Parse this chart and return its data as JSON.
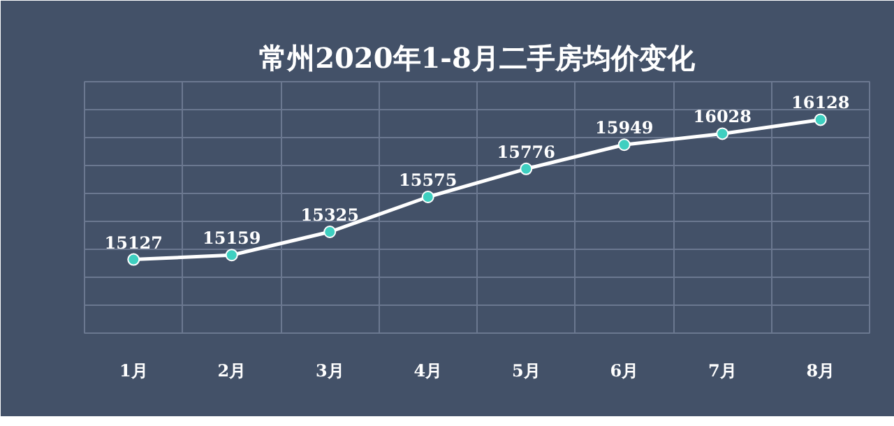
{
  "chart_data": {
    "type": "line",
    "title": "常州2020年1-8月二手房均价变化",
    "categories": [
      "1月",
      "2月",
      "3月",
      "4月",
      "5月",
      "6月",
      "7月",
      "8月"
    ],
    "series": [
      {
        "color": "#ffffff",
        "values": [
          15127,
          15159,
          15325,
          15575,
          15776,
          15949,
          16028,
          16128
        ]
      }
    ],
    "marker": "circle",
    "line_style": "solid",
    "data_labels": true,
    "grid": true,
    "tick_labels": "x",
    "ylim": [
      14600,
      16400
    ],
    "yticks": [
      {
        "value": 14600,
        "label": null
      },
      {
        "value": 14800,
        "label": null
      },
      {
        "value": 15000,
        "label": null
      },
      {
        "value": 15200,
        "label": null
      },
      {
        "value": 15400,
        "label": null
      },
      {
        "value": 15600,
        "label": null
      },
      {
        "value": 15800,
        "label": null
      },
      {
        "value": 16000,
        "label": null
      },
      {
        "value": 16200,
        "label": null
      },
      {
        "value": 16400,
        "label": null
      }
    ]
  }
}
